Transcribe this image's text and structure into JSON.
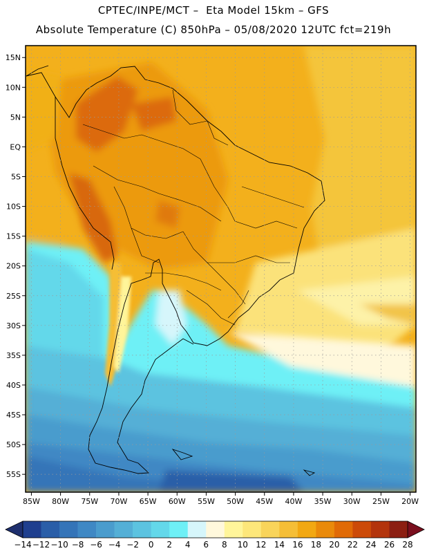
{
  "header": {
    "line1": "CPTEC/INPE/MCT –  Eta Model 15km – GFS",
    "line2": "Absolute Temperature (C) 850hPa – 05/08/2020 12UTC fct=219h"
  },
  "map": {
    "lon_range": [
      -86,
      -19
    ],
    "lat_range": [
      -58,
      17
    ],
    "lon_ticks": [
      "85W",
      "80W",
      "75W",
      "70W",
      "65W",
      "60W",
      "55W",
      "50W",
      "45W",
      "40W",
      "35W",
      "30W",
      "25W",
      "20W"
    ],
    "lat_ticks": [
      "15N",
      "10N",
      "5N",
      "EQ",
      "5S",
      "10S",
      "15S",
      "20S",
      "25S",
      "30S",
      "35S",
      "40S",
      "45S",
      "50S",
      "55S"
    ]
  },
  "colorbar": {
    "labels": [
      "-14",
      "-12",
      "-10",
      "-8",
      "-6",
      "-4",
      "-2",
      "0",
      "2",
      "4",
      "6",
      "8",
      "10",
      "12",
      "14",
      "16",
      "18",
      "20",
      "22",
      "24",
      "26",
      "28"
    ],
    "colors": [
      "#1f3f8f",
      "#2a5ea8",
      "#3474b8",
      "#3f88c4",
      "#4a9ccd",
      "#54afd6",
      "#5cc3e0",
      "#63d8ea",
      "#6ef0f6",
      "#d6f6fb",
      "#fff8dc",
      "#fff59a",
      "#fde77a",
      "#f9d45a",
      "#f5be36",
      "#f2a812",
      "#ea8a0a",
      "#e06a06",
      "#cc4a08",
      "#b3340c",
      "#8c1f12"
    ],
    "under_color": "#1e2f6e",
    "over_color": "#7a0f1e"
  }
}
